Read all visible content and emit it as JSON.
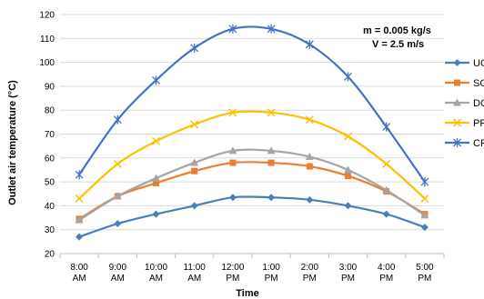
{
  "chart_data": {
    "type": "line",
    "xlabel": "Time",
    "ylabel": "Outlet air temperature (°C)",
    "ylim": [
      20,
      120
    ],
    "yticks": [
      20,
      30,
      40,
      50,
      60,
      70,
      80,
      90,
      100,
      110,
      120
    ],
    "grid": "horizontal",
    "legend": "right",
    "categories": [
      [
        "8:00",
        "AM"
      ],
      [
        "9:00",
        "AM"
      ],
      [
        "10:00",
        "AM"
      ],
      [
        "11:00",
        "AM"
      ],
      [
        "12:00",
        "PM"
      ],
      [
        "1:00",
        "PM"
      ],
      [
        "2:00",
        "PM"
      ],
      [
        "3:00",
        "PM"
      ],
      [
        "4:00",
        "PM"
      ],
      [
        "5:00",
        "PM"
      ]
    ],
    "annotations": [
      "m = 0.005 kg/s",
      "V = 2.5 m/s"
    ],
    "series": [
      {
        "name": "UG",
        "color": "#4a7ebb",
        "marker": "diamond",
        "values": [
          27,
          32.5,
          36.5,
          40,
          43.5,
          43.5,
          42.5,
          40,
          36.5,
          31
        ]
      },
      {
        "name": "SG",
        "color": "#ed7d31",
        "marker": "square",
        "values": [
          34.5,
          44,
          49.5,
          54.5,
          58,
          58,
          56.5,
          52.5,
          46,
          36.5
        ]
      },
      {
        "name": "DG",
        "color": "#a5a5a5",
        "marker": "triangle",
        "values": [
          34,
          44,
          51.5,
          58,
          63,
          63,
          60.5,
          55,
          46.5,
          36
        ]
      },
      {
        "name": "PF",
        "color": "#ffc000",
        "marker": "x",
        "values": [
          43,
          57.5,
          67,
          74,
          79,
          79,
          76,
          69,
          57.5,
          43
        ]
      },
      {
        "name": "CF",
        "color": "#4472c4",
        "marker": "star",
        "values": [
          53,
          76,
          92.5,
          106,
          114,
          114,
          107.5,
          94,
          73,
          50
        ]
      }
    ]
  }
}
